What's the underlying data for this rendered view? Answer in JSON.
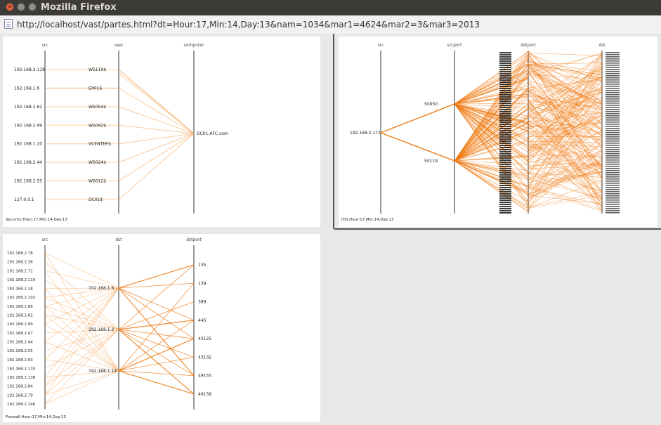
{
  "window": {
    "title": "Mozilla Firefox",
    "close_glyph": "×"
  },
  "address_bar": {
    "url": "http://localhost/vast/partes.html?dt=Hour:17,Min:14,Day:13&nam=1034&mar1=4624&mar2=3&mar3=2013",
    "icon": "page-icon"
  },
  "colors": {
    "line": "#f07a12",
    "line_light": "#f6a860",
    "axis": "#333333"
  },
  "panels": {
    "security": {
      "caption": "Security,Hour:17,Min:14,Day:13",
      "axes": [
        "src",
        "user",
        "computer"
      ],
      "src": [
        "192.168.2.119",
        "192.168.1.6",
        "192.168.2.62",
        "192.168.2.99",
        "192.168.1.10",
        "192.168.2.44",
        "192.168.2.55",
        "127.0.0.1"
      ],
      "user": [
        "WS119$",
        "EX01$",
        "WS054$",
        "WS092$",
        "VCENTER$",
        "WS024$",
        "WS012$",
        "DC01$"
      ],
      "computer": [
        "DC01.AFC.com"
      ]
    },
    "ids": {
      "caption": "IDS,Hour:17,Min:14,Day:13",
      "axes": [
        "src",
        "srcport",
        "dstport",
        "dst"
      ],
      "src": [
        "192.168.2.171"
      ],
      "srcport": [
        "50050",
        "50119"
      ]
    },
    "firewall": {
      "caption": "Firewall,Hour:17,Min:14,Day:13",
      "axes": [
        "src",
        "dst",
        "dstport"
      ],
      "src": [
        "192.168.2.78",
        "192.168.2.36",
        "192.168.2.71",
        "192.168.2.119",
        "192.168.2.18",
        "192.168.2.102",
        "192.168.2.88",
        "192.168.2.62",
        "192.168.2.99",
        "192.168.2.47",
        "192.168.2.44",
        "192.168.2.55",
        "192.168.2.83",
        "192.168.2.110",
        "192.168.2.138",
        "192.168.2.84",
        "192.168.2.79",
        "192.168.2.146"
      ],
      "dst": [
        "192.168.1.6",
        "192.168.1.2",
        "192.168.1.14"
      ],
      "dstport": [
        "135",
        "139",
        "389",
        "445",
        "43125",
        "43132",
        "49155",
        "49158"
      ]
    }
  }
}
